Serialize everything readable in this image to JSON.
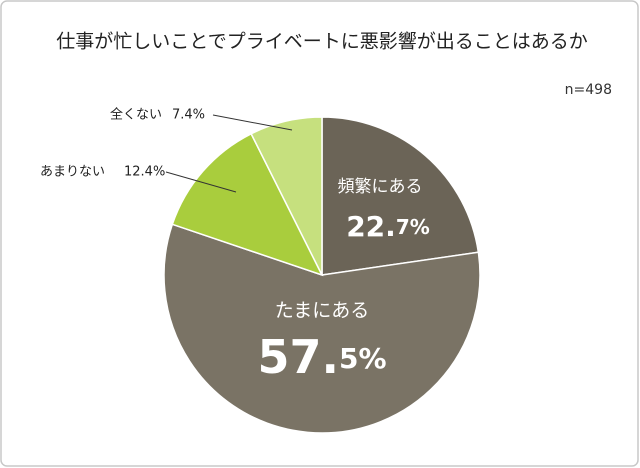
{
  "chart_data": {
    "type": "pie",
    "title": "仕事が忙しいことでプライベートに悪影響が出ることはあるか",
    "note": "n=498",
    "categories": [
      "頻繁にある",
      "たまにある",
      "あまりない",
      "全くない"
    ],
    "values": [
      22.7,
      57.5,
      12.4,
      7.4
    ],
    "value_labels": [
      "22.7%",
      "57.5%",
      "12.4%",
      "7.4%"
    ],
    "colors": [
      "#6b6457",
      "#7a7365",
      "#a9cd3d",
      "#c6e07e"
    ]
  }
}
